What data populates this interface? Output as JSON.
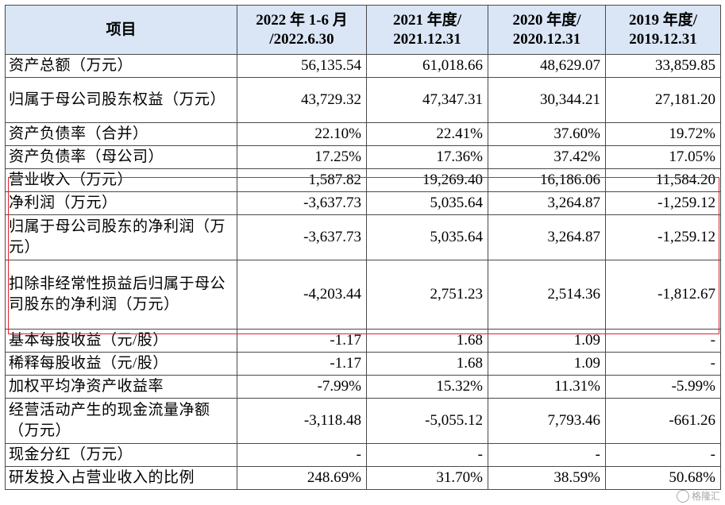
{
  "table": {
    "headers": [
      "项目",
      "2022 年 1-6 月\n/2022.6.30",
      "2021 年度/\n2021.12.31",
      "2020 年度/\n2020.12.31",
      "2019 年度/\n2019.12.31"
    ],
    "rows": [
      {
        "label": "资产总额（万元）",
        "values": [
          "56,135.54",
          "61,018.66",
          "48,629.07",
          "33,859.85"
        ]
      },
      {
        "label": "归属于母公司股东权益（万元）",
        "values": [
          "43,729.32",
          "47,347.31",
          "30,344.21",
          "27,181.20"
        ]
      },
      {
        "label": "资产负债率（合并）",
        "values": [
          "22.10%",
          "22.41%",
          "37.60%",
          "19.72%"
        ]
      },
      {
        "label": "资产负债率（母公司）",
        "values": [
          "17.25%",
          "17.36%",
          "37.42%",
          "17.05%"
        ]
      },
      {
        "label": "营业收入（万元）",
        "values": [
          "1,587.82",
          "19,269.40",
          "16,186.06",
          "11,584.20"
        ]
      },
      {
        "label": "净利润（万元）",
        "values": [
          "-3,637.73",
          "5,035.64",
          "3,264.87",
          "-1,259.12"
        ]
      },
      {
        "label": "归属于母公司股东的净利润（万元）",
        "values": [
          "-3,637.73",
          "5,035.64",
          "3,264.87",
          "-1,259.12"
        ]
      },
      {
        "label": "扣除非经常性损益后归属于母公司股东的净利润（万元）",
        "values": [
          "-4,203.44",
          "2,751.23",
          "2,514.36",
          "-1,812.67"
        ]
      },
      {
        "label": "基本每股收益（元/股）",
        "values": [
          "-1.17",
          "1.68",
          "1.09",
          "-"
        ]
      },
      {
        "label": "稀释每股收益（元/股）",
        "values": [
          "-1.17",
          "1.68",
          "1.09",
          "-"
        ]
      },
      {
        "label": "加权平均净资产收益率",
        "values": [
          "-7.99%",
          "15.32%",
          "11.31%",
          "-5.99%"
        ]
      },
      {
        "label": "经营活动产生的现金流量净额（万元）",
        "values": [
          "-3,118.48",
          "-5,055.12",
          "7,793.46",
          "-661.26"
        ]
      },
      {
        "label": "现金分红（万元）",
        "values": [
          "-",
          "-",
          "-",
          "-"
        ]
      },
      {
        "label": "研发投入占营业收入的比例",
        "values": [
          "248.69%",
          "31.70%",
          "38.59%",
          "50.68%"
        ]
      }
    ]
  },
  "colors": {
    "header_bg": "#dae6f6",
    "highlight_border": "#e0212c",
    "grid": "#4a4a4a"
  },
  "watermark": {
    "text": "格隆汇",
    "icon": "watermark-logo-icon"
  }
}
